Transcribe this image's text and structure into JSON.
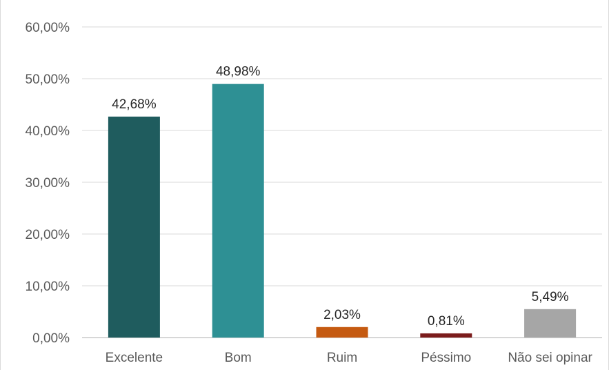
{
  "chart_data": {
    "type": "bar",
    "title": "",
    "xlabel": "",
    "ylabel": "",
    "categories": [
      "Excelente",
      "Bom",
      "Ruim",
      "Péssimo",
      "Não sei opinar"
    ],
    "values": [
      42.68,
      48.98,
      2.03,
      0.81,
      5.49
    ],
    "data_labels": [
      "42,68%",
      "48,98%",
      "2,03%",
      "0,81%",
      "5,49%"
    ],
    "colors": [
      "#1f5c5e",
      "#2e9094",
      "#c55a11",
      "#7b1c1c",
      "#a6a6a6"
    ],
    "ylim": [
      0,
      60
    ],
    "yticks": [
      0,
      10,
      20,
      30,
      40,
      50,
      60
    ],
    "ytick_labels": [
      "0,00%",
      "10,00%",
      "20,00%",
      "30,00%",
      "40,00%",
      "50,00%",
      "60,00%"
    ],
    "grid": true,
    "legend": "none"
  }
}
